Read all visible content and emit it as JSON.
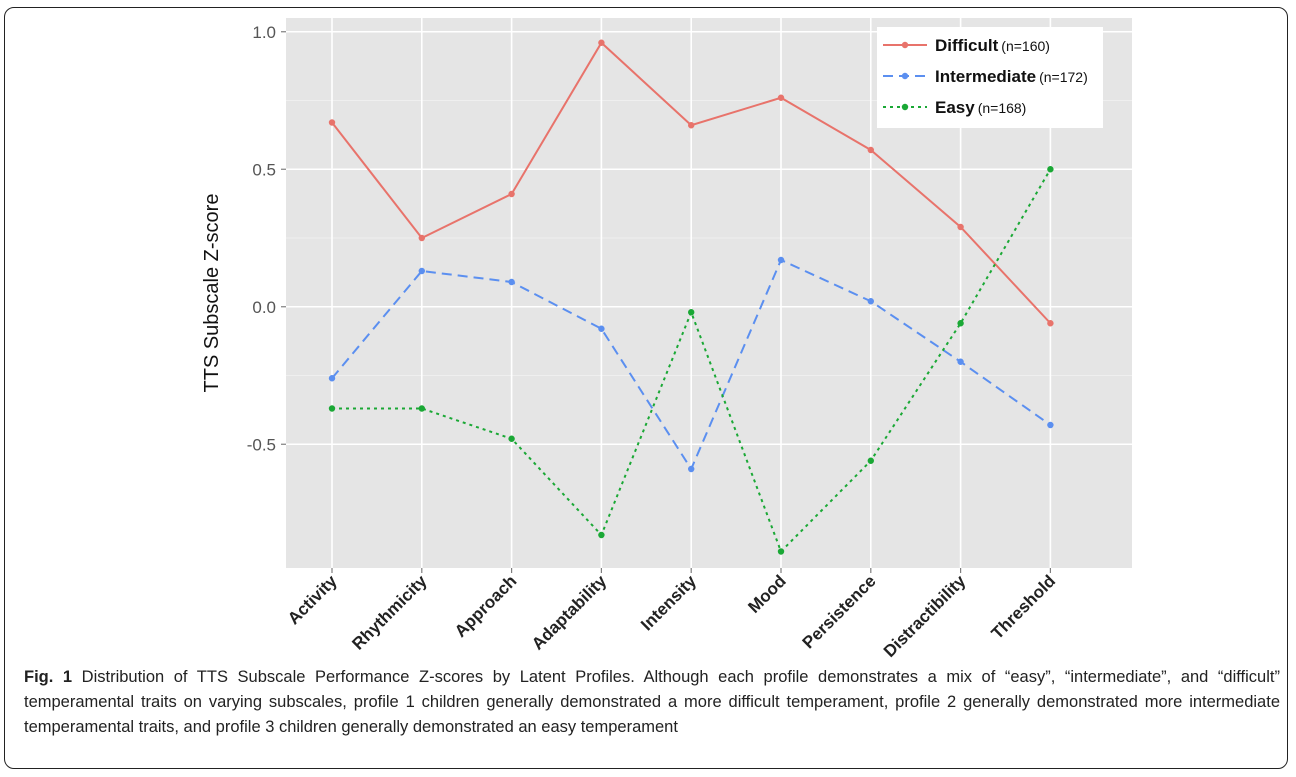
{
  "chart_data": {
    "type": "line",
    "title": "",
    "xlabel": "",
    "ylabel": "TTS Subscale Z-score",
    "categories": [
      "Activity",
      "Rhythmicity",
      "Approach",
      "Adaptability",
      "Intensity",
      "Mood",
      "Persistence",
      "Distractibility",
      "Threshold"
    ],
    "ylim": [
      -0.95,
      1.05
    ],
    "yticks": [
      1.0,
      0.5,
      0.0,
      -0.5
    ],
    "ytick_labels": [
      "1.0",
      "0.5",
      "0.0",
      "-0.5"
    ],
    "grid": true,
    "legend_position": "top-right",
    "series": [
      {
        "name": "Difficult",
        "n_label": "(n=160)",
        "color": "#e8736b",
        "dash": "solid",
        "values": [
          0.67,
          0.25,
          0.41,
          0.96,
          0.66,
          0.76,
          0.57,
          0.29,
          -0.06
        ]
      },
      {
        "name": "Intermediate",
        "n_label": "(n=172)",
        "color": "#5b8ff0",
        "dash": "dashed",
        "values": [
          -0.26,
          0.13,
          0.09,
          -0.08,
          -0.59,
          0.17,
          0.02,
          -0.2,
          -0.43
        ]
      },
      {
        "name": "Easy",
        "n_label": "(n=168)",
        "color": "#1aa835",
        "dash": "dotted",
        "values": [
          -0.37,
          -0.37,
          -0.48,
          -0.83,
          -0.02,
          -0.89,
          -0.56,
          -0.06,
          0.5
        ]
      }
    ]
  },
  "caption": {
    "label": "Fig. 1",
    "text": "Distribution of TTS Subscale Performance Z-scores by Latent Profiles. Although each profile demonstrates a mix of “easy”, “intermediate”, and “difficult” temperamental traits on varying subscales, profile 1 children generally demonstrated a more difficult temperament, profile 2 generally demonstrated more intermediate temperamental traits, and profile 3 children generally demonstrated an easy temperament"
  }
}
